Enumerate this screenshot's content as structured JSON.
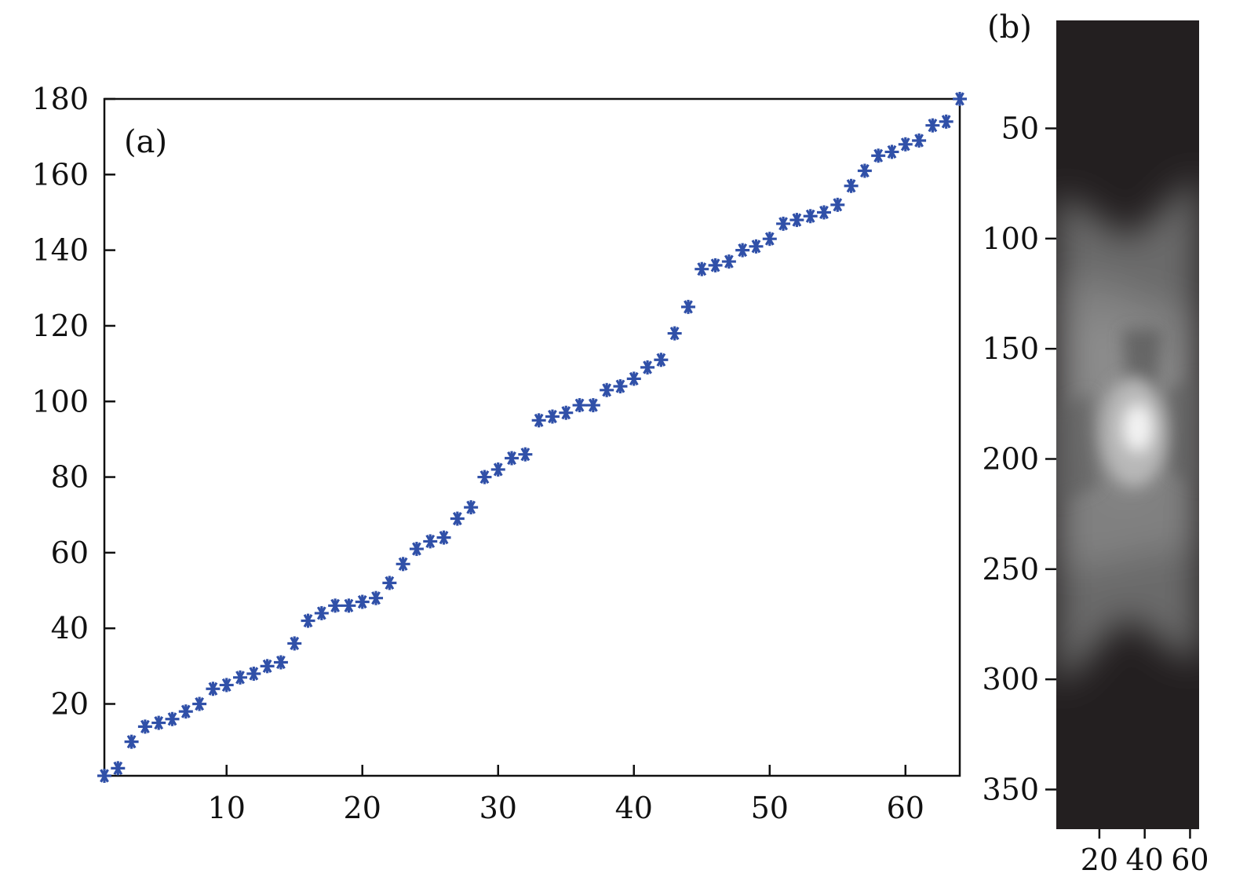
{
  "chart_data": [
    {
      "type": "scatter",
      "panel_label": "(a)",
      "xlim": [
        1,
        64
      ],
      "ylim": [
        1,
        180
      ],
      "xticks": [
        10,
        20,
        30,
        40,
        50,
        60
      ],
      "yticks": [
        20,
        40,
        60,
        80,
        100,
        120,
        140,
        160,
        180
      ],
      "marker": "asterisk",
      "marker_color": "#3050a8",
      "grid": false,
      "series": [
        {
          "x": [
            1,
            2,
            3,
            4,
            5,
            6,
            7,
            8,
            9,
            10,
            11,
            12,
            13,
            14,
            15,
            16,
            17,
            18,
            19,
            20,
            21,
            22,
            23,
            24,
            25,
            26,
            27,
            28,
            29,
            30,
            31,
            32,
            33,
            34,
            35,
            36,
            37,
            38,
            39,
            40,
            41,
            42,
            43,
            44,
            45,
            46,
            47,
            48,
            49,
            50,
            51,
            52,
            53,
            54,
            55,
            56,
            57,
            58,
            59,
            60,
            61,
            62,
            63,
            64
          ],
          "y": [
            1,
            3,
            10,
            14,
            15,
            16,
            18,
            20,
            24,
            25,
            27,
            28,
            30,
            31,
            36,
            42,
            44,
            46,
            46,
            47,
            48,
            52,
            57,
            61,
            63,
            64,
            69,
            72,
            80,
            82,
            85,
            86,
            95,
            96,
            97,
            99,
            99,
            103,
            104,
            106,
            109,
            111,
            118,
            125,
            135,
            136,
            137,
            140,
            141,
            143,
            147,
            148,
            149,
            150,
            152,
            157,
            161,
            165,
            166,
            168,
            169,
            173,
            174,
            180
          ]
        }
      ]
    },
    {
      "type": "heatmap",
      "panel_label": "(b)",
      "colormap": "gray",
      "xlim": [
        1,
        64
      ],
      "ylim": [
        1,
        368
      ],
      "xticks": [
        20,
        40,
        60
      ],
      "yticks": [
        50,
        100,
        150,
        200,
        250,
        300,
        350
      ],
      "background_color": "#231f20"
    }
  ]
}
